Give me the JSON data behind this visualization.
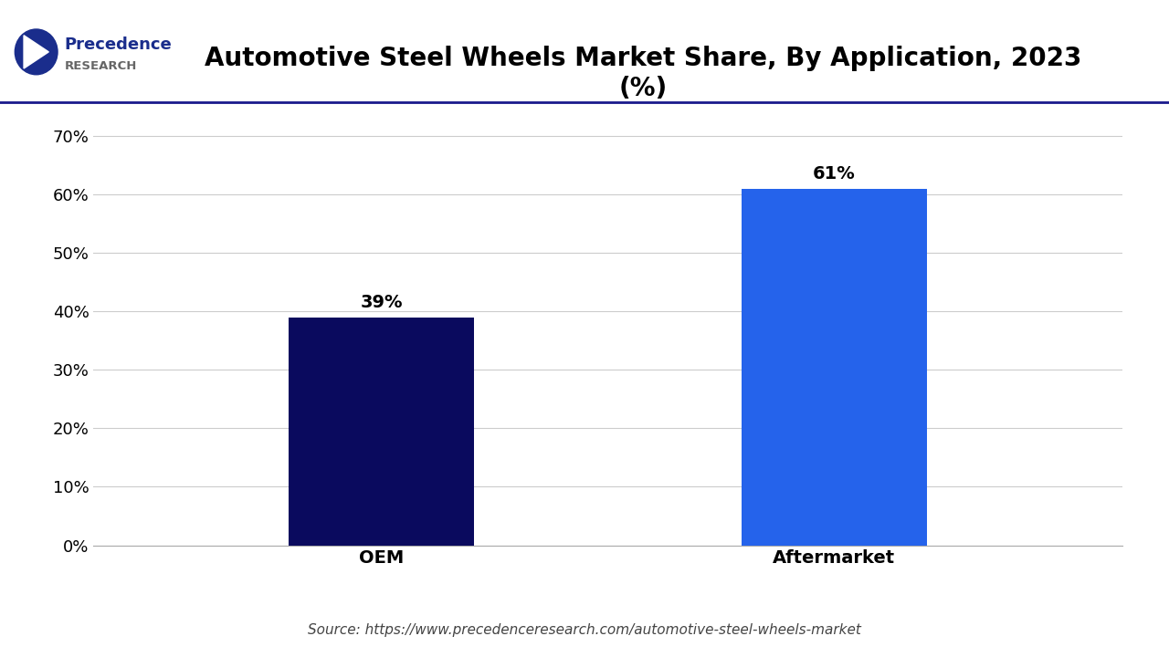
{
  "title": "Automotive Steel Wheels Market Share, By Application, 2023\n(%)",
  "categories": [
    "OEM",
    "Aftermarket"
  ],
  "values": [
    39,
    61
  ],
  "bar_colors": [
    "#0a0a5e",
    "#2563eb"
  ],
  "bar_labels": [
    "39%",
    "61%"
  ],
  "yticks": [
    0,
    10,
    20,
    30,
    40,
    50,
    60,
    70
  ],
  "ytick_labels": [
    "0%",
    "10%",
    "20%",
    "30%",
    "40%",
    "50%",
    "60%",
    "70%"
  ],
  "ylim": [
    0,
    73
  ],
  "background_color": "#ffffff",
  "source_text": "Source: https://www.precedenceresearch.com/automotive-steel-wheels-market",
  "title_fontsize": 20,
  "tick_fontsize": 13,
  "label_fontsize": 14,
  "bar_label_fontsize": 14,
  "source_fontsize": 11,
  "logo_text_precedence": "Precedence",
  "logo_text_research": "RESEARCH",
  "grid_color": "#cccccc",
  "axis_line_color": "#aaaaaa",
  "header_line_color": "#1a1a8c"
}
